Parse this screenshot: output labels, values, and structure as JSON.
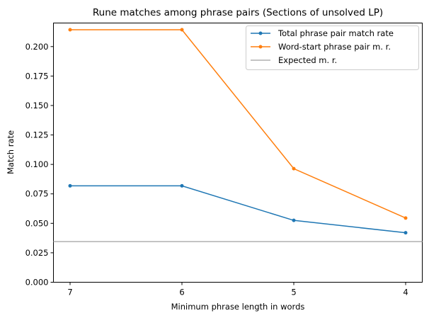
{
  "chart_data": {
    "type": "line",
    "title": "Rune matches among phrase pairs (Sections of unsolved LP)",
    "xlabel": "Minimum phrase length in words",
    "ylabel": "Match rate",
    "categories": [
      "7",
      "6",
      "5",
      "4"
    ],
    "ylim": [
      0.0,
      0.22
    ],
    "yticks": [
      "0.000",
      "0.025",
      "0.050",
      "0.075",
      "0.100",
      "0.125",
      "0.150",
      "0.175",
      "0.200"
    ],
    "series": [
      {
        "name": "Total phrase pair match rate",
        "values": [
          0.0818,
          0.0818,
          0.0525,
          0.042
        ],
        "color": "#1f77b4",
        "marker": "circle"
      },
      {
        "name": "Word-start phrase pair m. r.",
        "values": [
          0.2143,
          0.2143,
          0.0964,
          0.0545
        ],
        "color": "#ff7f0e",
        "marker": "circle"
      }
    ],
    "reference_lines": [
      {
        "name": "Expected m. r.",
        "value": 0.0345,
        "color": "#b0b0b0",
        "orientation": "horizontal"
      }
    ],
    "grid": false,
    "legend_position": "top-right"
  }
}
